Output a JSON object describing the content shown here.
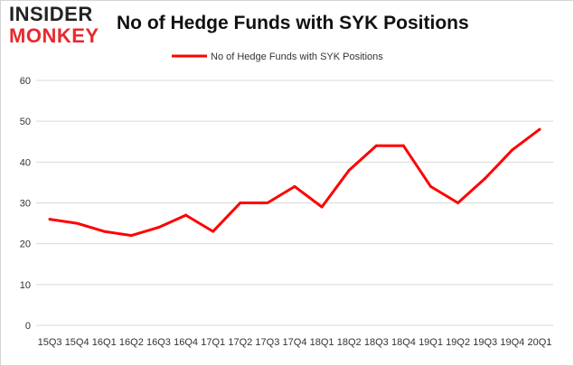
{
  "logo": {
    "line1": "INSIDER",
    "line2": "MONKEY"
  },
  "colors": {
    "series": "#ff0000",
    "grid": "#d9d9d9",
    "logo_dark": "#222222",
    "logo_red": "#e8292d"
  },
  "chart_data": {
    "type": "line",
    "title": "No of Hedge Funds with SYK Positions",
    "xlabel": "",
    "ylabel": "",
    "categories": [
      "15Q3",
      "15Q4",
      "16Q1",
      "16Q2",
      "16Q3",
      "16Q4",
      "17Q1",
      "17Q2",
      "17Q3",
      "17Q4",
      "18Q1",
      "18Q2",
      "18Q3",
      "18Q4",
      "19Q1",
      "19Q2",
      "19Q3",
      "19Q4",
      "20Q1"
    ],
    "series": [
      {
        "name": "No of Hedge Funds with SYK Positions",
        "values": [
          26,
          25,
          23,
          22,
          24,
          27,
          23,
          30,
          30,
          34,
          29,
          38,
          44,
          44,
          34,
          30,
          36,
          43,
          48
        ]
      }
    ],
    "ylim": [
      0,
      60
    ],
    "yticks": [
      0,
      10,
      20,
      30,
      40,
      50,
      60
    ],
    "grid": "horizontal",
    "legend": "top-center"
  }
}
